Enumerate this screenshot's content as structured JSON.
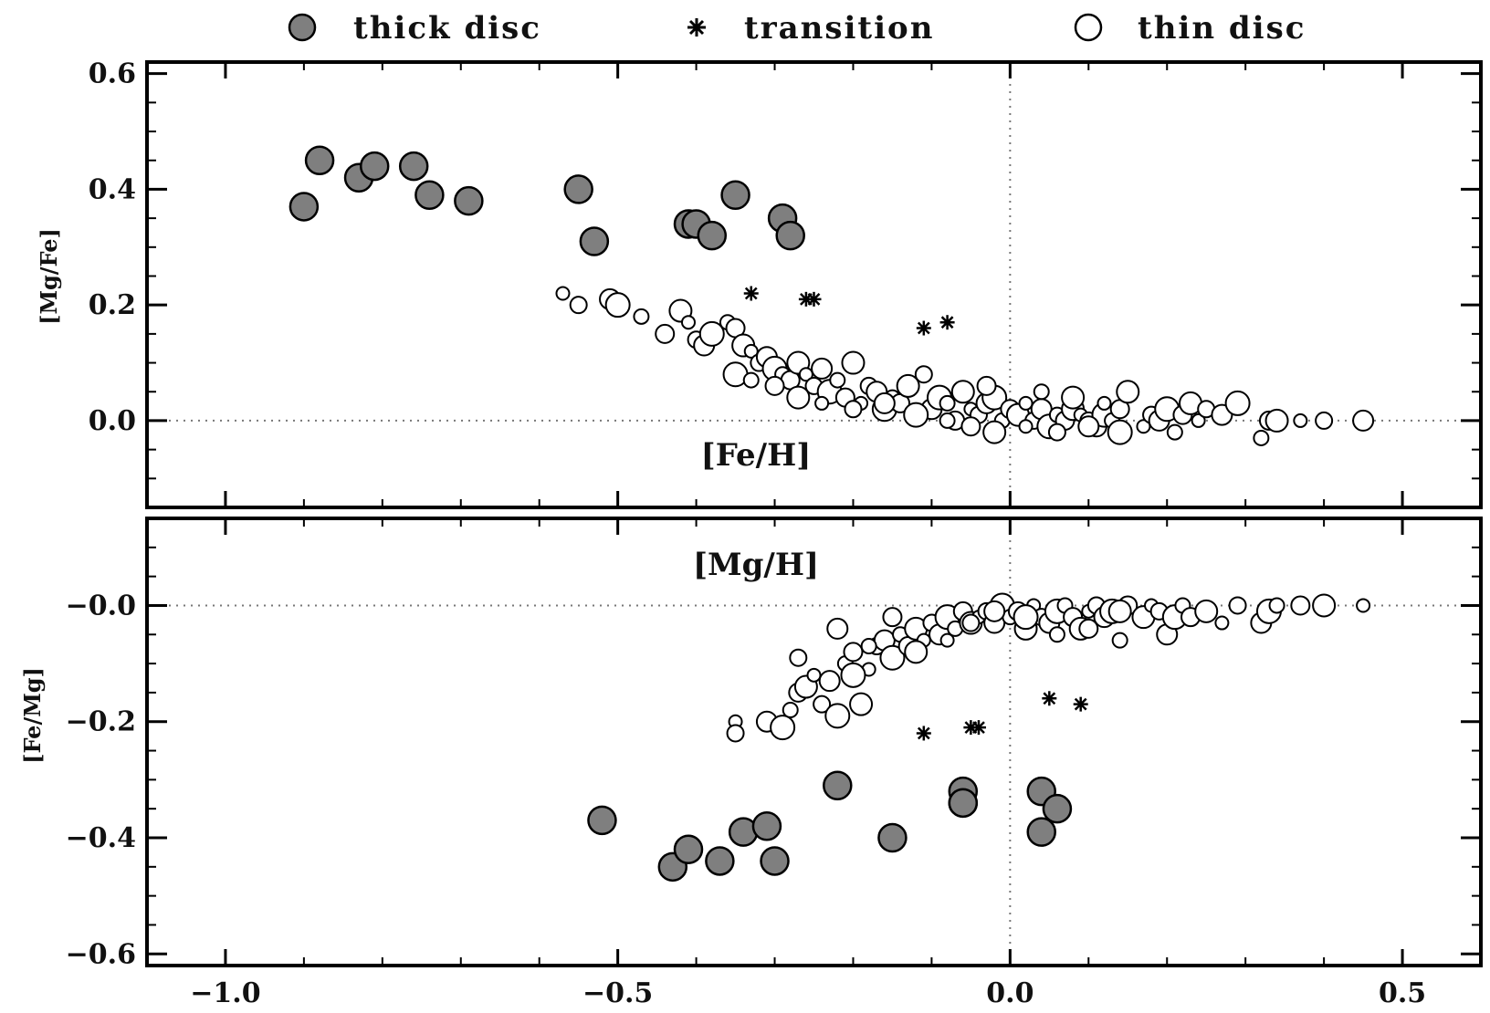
{
  "legend": {
    "thick": "thick disc",
    "transition": "transition",
    "thin": "thin disc"
  },
  "colors": {
    "thick_fill": "#7f7f7f",
    "thin_fill": "#ffffff",
    "outline": "#000000"
  },
  "chart_data": [
    {
      "type": "scatter",
      "panel": "top",
      "xlabel": "[Fe/H]",
      "ylabel": "[Mg/Fe]",
      "xlim": [
        -1.1,
        0.6
      ],
      "ylim": [
        -0.15,
        0.62
      ],
      "xticks": [
        -1.0,
        -0.5,
        0.0,
        0.5
      ],
      "xtick_labels": [
        "",
        "",
        "",
        ""
      ],
      "yticks": [
        0.6,
        0.4,
        0.2,
        0.0
      ],
      "ytick_labels": [
        "0.6",
        "0.4",
        "0.2",
        "0.0"
      ],
      "reference_lines": {
        "x": 0.0,
        "y": 0.0
      },
      "series": [
        {
          "name": "thick disc",
          "marker": "filled-circle",
          "x": [
            -0.88,
            -0.83,
            -0.81,
            -0.9,
            -0.76,
            -0.74,
            -0.69,
            -0.55,
            -0.53,
            -0.41,
            -0.4,
            -0.38,
            -0.35,
            -0.29,
            -0.28
          ],
          "y": [
            0.45,
            0.42,
            0.44,
            0.37,
            0.44,
            0.39,
            0.38,
            0.4,
            0.31,
            0.34,
            0.34,
            0.32,
            0.39,
            0.35,
            0.32
          ]
        },
        {
          "name": "transition",
          "marker": "asterisk",
          "x": [
            -0.33,
            -0.26,
            -0.25,
            -0.11,
            -0.08
          ],
          "y": [
            0.22,
            0.21,
            0.21,
            0.16,
            0.17
          ]
        },
        {
          "name": "thin disc",
          "marker": "open-circle",
          "x": [
            -0.57,
            -0.55,
            -0.51,
            -0.5,
            -0.47,
            -0.44,
            -0.42,
            -0.41,
            -0.4,
            -0.39,
            -0.38,
            -0.36,
            -0.35,
            -0.34,
            -0.33,
            -0.32,
            -0.31,
            -0.3,
            -0.29,
            -0.28,
            -0.27,
            -0.26,
            -0.25,
            -0.24,
            -0.23,
            -0.22,
            -0.21,
            -0.2,
            -0.19,
            -0.18,
            -0.17,
            -0.16,
            -0.15,
            -0.14,
            -0.13,
            -0.12,
            -0.11,
            -0.1,
            -0.09,
            -0.08,
            -0.07,
            -0.06,
            -0.05,
            -0.04,
            -0.03,
            -0.02,
            -0.01,
            0.0,
            0.01,
            0.02,
            0.03,
            0.04,
            0.05,
            0.06,
            0.07,
            0.08,
            0.09,
            0.1,
            0.11,
            0.12,
            0.13,
            0.14,
            0.15,
            0.17,
            0.18,
            0.19,
            0.2,
            0.21,
            0.22,
            0.23,
            0.24,
            0.25,
            0.27,
            0.29,
            0.32,
            0.33,
            0.34,
            0.37,
            0.4,
            0.45,
            -0.35,
            -0.33,
            -0.3,
            -0.27,
            -0.24,
            -0.2,
            -0.16,
            -0.12,
            -0.08,
            -0.05,
            -0.02,
            0.02,
            0.06,
            0.1,
            0.14,
            0.04,
            -0.03,
            0.08,
            0.12
          ],
          "y": [
            0.22,
            0.2,
            0.21,
            0.2,
            0.18,
            0.15,
            0.19,
            0.17,
            0.14,
            0.13,
            0.15,
            0.17,
            0.16,
            0.13,
            0.12,
            0.1,
            0.11,
            0.09,
            0.08,
            0.07,
            0.1,
            0.08,
            0.06,
            0.09,
            0.05,
            0.07,
            0.04,
            0.1,
            0.03,
            0.06,
            0.05,
            0.02,
            0.04,
            0.03,
            0.06,
            0.01,
            0.08,
            0.02,
            0.04,
            0.03,
            0.0,
            0.05,
            0.02,
            0.01,
            0.03,
            0.04,
            0.0,
            0.02,
            0.01,
            0.03,
            0.0,
            0.02,
            -0.01,
            0.01,
            0.0,
            0.02,
            0.01,
            0.0,
            -0.01,
            0.01,
            0.0,
            0.02,
            0.05,
            -0.01,
            0.01,
            0.0,
            0.02,
            -0.02,
            0.01,
            0.03,
            0.0,
            0.02,
            0.01,
            0.03,
            -0.03,
            0.0,
            0.0,
            0.0,
            0.0,
            0.0,
            0.08,
            0.07,
            0.06,
            0.04,
            0.03,
            0.02,
            0.03,
            0.01,
            0.0,
            -0.01,
            -0.02,
            -0.01,
            -0.02,
            -0.01,
            -0.02,
            0.05,
            0.06,
            0.04,
            0.03
          ]
        }
      ]
    },
    {
      "type": "scatter",
      "panel": "bottom",
      "xlabel": "[Mg/H]",
      "ylabel": "[Fe/Mg]",
      "xlim": [
        -1.1,
        0.6
      ],
      "ylim": [
        -0.62,
        0.15
      ],
      "xticks": [
        -1.0,
        -0.5,
        0.0,
        0.5
      ],
      "xtick_labels": [
        "−1.0",
        "−0.5",
        "0.0",
        "0.5"
      ],
      "yticks": [
        0.0,
        -0.2,
        -0.4,
        -0.6
      ],
      "ytick_labels": [
        "−0.0",
        "−0.2",
        "−0.4",
        "−0.6"
      ],
      "reference_lines": {
        "x": 0.0,
        "y": 0.0
      },
      "series": [
        {
          "name": "thick disc",
          "marker": "filled-circle",
          "x": [
            -0.52,
            -0.43,
            -0.41,
            -0.37,
            -0.34,
            -0.31,
            -0.3,
            -0.22,
            -0.15,
            -0.06,
            -0.06,
            -0.06,
            0.04,
            0.04,
            0.06
          ],
          "y": [
            -0.37,
            -0.45,
            -0.42,
            -0.44,
            -0.39,
            -0.38,
            -0.44,
            -0.31,
            -0.4,
            -0.32,
            -0.34,
            -0.34,
            -0.32,
            -0.39,
            -0.35
          ]
        },
        {
          "name": "transition",
          "marker": "asterisk",
          "x": [
            -0.11,
            -0.05,
            -0.04,
            0.05,
            0.09
          ],
          "y": [
            -0.22,
            -0.21,
            -0.21,
            -0.16,
            -0.17
          ]
        },
        {
          "name": "thin disc",
          "marker": "open-circle",
          "x": [
            -0.35,
            -0.35,
            -0.31,
            -0.29,
            -0.28,
            -0.27,
            -0.26,
            -0.25,
            -0.24,
            -0.23,
            -0.22,
            -0.21,
            -0.2,
            -0.19,
            -0.18,
            -0.17,
            -0.16,
            -0.15,
            -0.14,
            -0.13,
            -0.12,
            -0.11,
            -0.1,
            -0.09,
            -0.08,
            -0.07,
            -0.06,
            -0.05,
            -0.04,
            -0.03,
            -0.02,
            -0.01,
            0.0,
            0.01,
            0.02,
            0.03,
            0.04,
            0.05,
            0.06,
            0.07,
            0.08,
            0.09,
            0.1,
            0.11,
            0.12,
            0.13,
            0.14,
            0.15,
            0.17,
            0.18,
            0.19,
            0.2,
            0.21,
            0.22,
            0.23,
            0.25,
            0.27,
            0.29,
            0.32,
            0.33,
            0.34,
            0.37,
            0.4,
            0.45,
            -0.27,
            -0.22,
            -0.2,
            -0.18,
            -0.15,
            -0.12,
            -0.08,
            -0.05,
            -0.02,
            0.02,
            0.06,
            0.1,
            0.14
          ],
          "y": [
            -0.2,
            -0.22,
            -0.2,
            -0.21,
            -0.18,
            -0.15,
            -0.14,
            -0.12,
            -0.17,
            -0.13,
            -0.19,
            -0.1,
            -0.08,
            -0.17,
            -0.11,
            -0.07,
            -0.06,
            -0.09,
            -0.05,
            -0.07,
            -0.04,
            -0.06,
            -0.03,
            -0.05,
            -0.02,
            -0.04,
            -0.01,
            -0.03,
            -0.02,
            -0.01,
            -0.03,
            0.0,
            -0.02,
            -0.01,
            -0.04,
            0.0,
            -0.02,
            -0.03,
            -0.01,
            0.0,
            -0.02,
            -0.04,
            -0.01,
            0.0,
            -0.02,
            -0.01,
            -0.06,
            0.0,
            -0.02,
            0.0,
            -0.01,
            -0.05,
            -0.02,
            0.0,
            -0.02,
            -0.01,
            -0.03,
            0.0,
            -0.03,
            -0.01,
            0.0,
            0.0,
            0.0,
            0.0,
            -0.09,
            -0.04,
            -0.12,
            -0.07,
            -0.02,
            -0.08,
            -0.06,
            -0.03,
            -0.01,
            -0.02,
            -0.05,
            -0.04,
            -0.01
          ]
        }
      ]
    }
  ]
}
